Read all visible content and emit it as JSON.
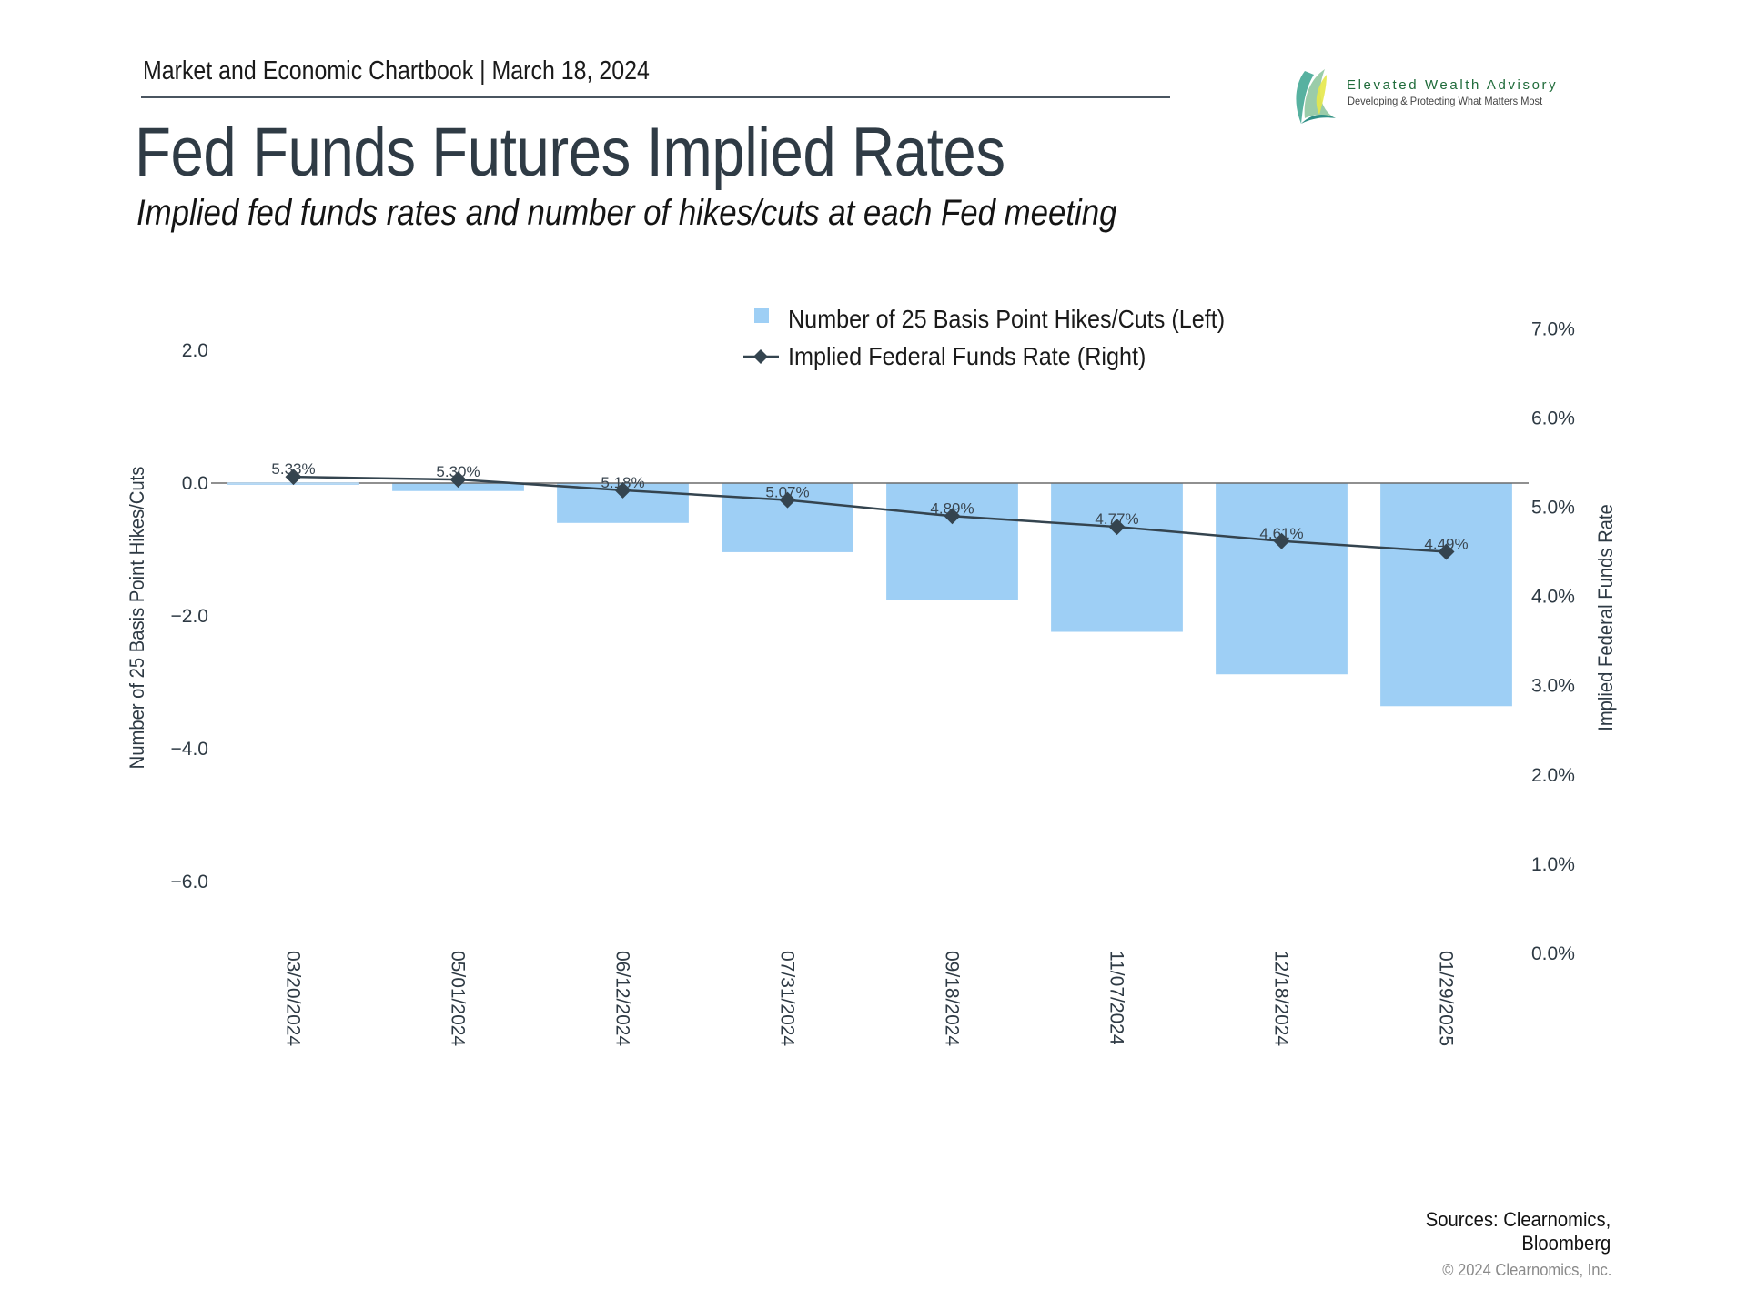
{
  "header": {
    "text": "Market and Economic Chartbook | March 18, 2024",
    "title": "Fed Funds Futures Implied Rates",
    "subtitle": "Implied fed funds rates and number of hikes/cuts at each Fed meeting"
  },
  "logo": {
    "name": "Elevated Wealth Advisory",
    "tagline": "Developing & Protecting What Matters Most",
    "colors": {
      "green": "#1f6b3a",
      "teal": "#3aa38f",
      "yellow": "#e6e84a"
    }
  },
  "footer": {
    "sources_line1": "Sources: Clearnomics,",
    "sources_line2": "Bloomberg",
    "copyright": "© 2024 Clearnomics, Inc."
  },
  "chart_data": {
    "type": "bar+line",
    "title": "Fed Funds Futures Implied Rates",
    "categories": [
      "03/20/2024",
      "05/01/2024",
      "06/12/2024",
      "07/31/2024",
      "09/18/2024",
      "11/07/2024",
      "12/18/2024",
      "01/29/2025"
    ],
    "series": [
      {
        "name": "Number of 25 Basis Point Hikes/Cuts (Left)",
        "type": "bar",
        "axis": "left",
        "color": "#9ecff5",
        "values": [
          0.0,
          -0.12,
          -0.6,
          -1.04,
          -1.76,
          -2.24,
          -2.88,
          -3.36
        ]
      },
      {
        "name": "Implied Federal Funds Rate (Right)",
        "type": "line",
        "axis": "right",
        "color": "#34444f",
        "marker": "diamond",
        "values": [
          5.33,
          5.3,
          5.18,
          5.07,
          4.89,
          4.77,
          4.61,
          4.49
        ],
        "labels": [
          "5.33%",
          "5.30%",
          "5.18%",
          "5.07%",
          "4.89%",
          "4.77%",
          "4.61%",
          "4.49%"
        ]
      }
    ],
    "left_axis": {
      "label": "Number of 25 Basis Point Hikes/Cuts",
      "range": [
        -7.5,
        3.0
      ],
      "ticks": [
        2.0,
        0.0,
        -2.0,
        -4.0,
        -6.0
      ],
      "tick_labels": [
        "2.0",
        "0.0",
        "−2.0",
        "−4.0",
        "−6.0"
      ]
    },
    "right_axis": {
      "label": "Implied Federal Funds Rate",
      "range": [
        0.0,
        7.0
      ],
      "ticks": [
        7.0,
        6.0,
        5.0,
        4.0,
        3.0,
        2.0,
        1.0,
        0.0
      ],
      "tick_labels": [
        "7.0%",
        "6.0%",
        "5.0%",
        "4.0%",
        "3.0%",
        "2.0%",
        "1.0%",
        "0.0%"
      ]
    },
    "legend": {
      "position": "top-center",
      "items": [
        "Number of 25 Basis Point Hikes/Cuts (Left)",
        "Implied Federal Funds Rate (Right)"
      ]
    },
    "grid": false,
    "zero_line": true
  }
}
